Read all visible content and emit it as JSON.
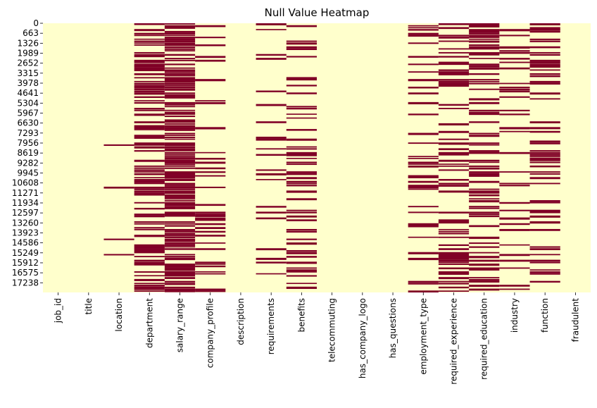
{
  "chart_data": {
    "type": "heatmap",
    "title": "Null Value Heatmap",
    "columns": [
      "job_id",
      "title",
      "location",
      "department",
      "salary_range",
      "company_profile",
      "description",
      "requirements",
      "benefits",
      "telecommuting",
      "has_company_logo",
      "has_questions",
      "employment_type",
      "required_experience",
      "required_education",
      "industry",
      "function",
      "fraudulent"
    ],
    "row_count": 17880,
    "ytick_labels": [
      "0",
      "663",
      "1326",
      "1989",
      "2652",
      "3315",
      "3978",
      "4641",
      "5304",
      "5967",
      "6630",
      "7293",
      "7956",
      "8619",
      "9282",
      "9945",
      "10608",
      "11271",
      "11934",
      "12597",
      "13260",
      "13923",
      "14586",
      "15249",
      "15912",
      "16575",
      "17238"
    ],
    "value_colors": {
      "not_null": "#ffffcc",
      "null": "#800026"
    },
    "approx_null_fraction": {
      "job_id": 0.0,
      "title": 0.0,
      "location": 0.02,
      "department": 0.65,
      "salary_range": 0.84,
      "company_profile": 0.19,
      "description": 0.0,
      "requirements": 0.15,
      "benefits": 0.4,
      "telecommuting": 0.0,
      "has_company_logo": 0.0,
      "has_questions": 0.0,
      "employment_type": 0.19,
      "required_experience": 0.39,
      "required_education": 0.45,
      "industry": 0.27,
      "function": 0.36,
      "fraudulent": 0.0
    },
    "colorbar": false,
    "grid": false
  }
}
